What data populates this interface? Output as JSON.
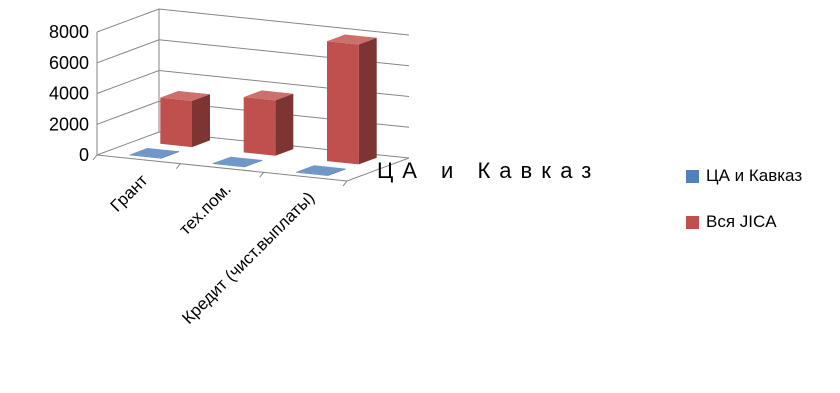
{
  "chart_data": {
    "type": "bar",
    "style": "3d-column",
    "categories": [
      "Грант",
      "тех.пом.",
      "Кредит (чист.выплаты)"
    ],
    "series": [
      {
        "name": "ЦА и Кавказ",
        "values": [
          40,
          40,
          40
        ],
        "color": "#4F81BD"
      },
      {
        "name": "Вся JICA",
        "values": [
          3000,
          3600,
          7800
        ],
        "color": "#C0504D"
      }
    ],
    "depth_axis_label": "ЦА и Кавказ",
    "yticks": [
      0,
      2000,
      4000,
      6000,
      8000
    ],
    "ylim": [
      0,
      8000
    ],
    "grid": true,
    "legend_position": "right"
  }
}
